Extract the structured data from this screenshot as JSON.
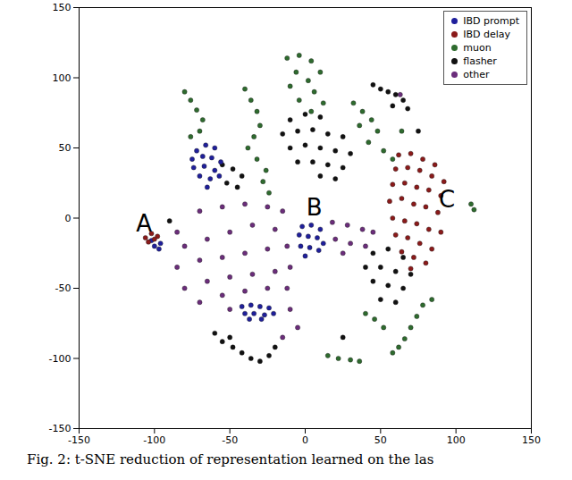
{
  "chart_data": {
    "type": "scatter",
    "caption": "Fig. 2: t-SNE reduction of representation learned on the las",
    "xlim": [
      -150,
      150
    ],
    "xticks": [
      -150,
      -100,
      -50,
      0,
      50,
      100,
      150
    ],
    "ylim": [
      -150,
      150
    ],
    "yticks": [
      -150,
      -100,
      -50,
      0,
      50,
      100,
      150
    ],
    "grid": false,
    "legend": "upper right",
    "marker": "o",
    "series": [
      {
        "name": "other",
        "color": "#6b2d7b",
        "values": [
          [
            -85,
            -10
          ],
          [
            -70,
            5
          ],
          [
            -55,
            8
          ],
          [
            -40,
            10
          ],
          [
            -25,
            8
          ],
          [
            -15,
            5
          ],
          [
            -80,
            -20
          ],
          [
            -65,
            -15
          ],
          [
            -50,
            -10
          ],
          [
            -35,
            -5
          ],
          [
            -20,
            -8
          ],
          [
            -85,
            -35
          ],
          [
            -70,
            -30
          ],
          [
            -55,
            -28
          ],
          [
            -40,
            -25
          ],
          [
            -25,
            -22
          ],
          [
            -12,
            -20
          ],
          [
            -80,
            -50
          ],
          [
            -65,
            -45
          ],
          [
            -50,
            -42
          ],
          [
            -35,
            -40
          ],
          [
            -20,
            -38
          ],
          [
            -10,
            -35
          ],
          [
            -70,
            -60
          ],
          [
            -55,
            -55
          ],
          [
            -40,
            -52
          ],
          [
            -25,
            -50
          ],
          [
            -12,
            -50
          ],
          [
            -50,
            -65
          ],
          [
            -10,
            -65
          ],
          [
            -5,
            -78
          ],
          [
            -15,
            -85
          ],
          [
            18,
            -3
          ],
          [
            28,
            -5
          ],
          [
            38,
            -8
          ],
          [
            45,
            -10
          ],
          [
            20,
            -15
          ],
          [
            30,
            -18
          ],
          [
            40,
            -20
          ],
          [
            25,
            -25
          ],
          [
            63,
            88
          ]
        ]
      },
      {
        "name": "muon",
        "color": "#2e6b2e",
        "values": [
          [
            -80,
            90
          ],
          [
            -76,
            84
          ],
          [
            -72,
            77
          ],
          [
            -68,
            70
          ],
          [
            -70,
            62
          ],
          [
            -76,
            58
          ],
          [
            -40,
            92
          ],
          [
            -36,
            84
          ],
          [
            -32,
            76
          ],
          [
            -30,
            66
          ],
          [
            -34,
            58
          ],
          [
            -38,
            50
          ],
          [
            -32,
            42
          ],
          [
            -26,
            34
          ],
          [
            -28,
            26
          ],
          [
            -24,
            18
          ],
          [
            -12,
            114
          ],
          [
            -4,
            116
          ],
          [
            4,
            112
          ],
          [
            10,
            104
          ],
          [
            -6,
            104
          ],
          [
            2,
            98
          ],
          [
            -10,
            94
          ],
          [
            6,
            90
          ],
          [
            12,
            82
          ],
          [
            -4,
            84
          ],
          [
            4,
            76
          ],
          [
            32,
            82
          ],
          [
            38,
            76
          ],
          [
            44,
            70
          ],
          [
            36,
            66
          ],
          [
            48,
            62
          ],
          [
            42,
            54
          ],
          [
            52,
            48
          ],
          [
            58,
            42
          ],
          [
            64,
            62
          ],
          [
            110,
            10
          ],
          [
            112,
            6
          ],
          [
            78,
            -62
          ],
          [
            74,
            -70
          ],
          [
            70,
            -78
          ],
          [
            66,
            -86
          ],
          [
            62,
            -92
          ],
          [
            58,
            -96
          ],
          [
            84,
            -58
          ],
          [
            40,
            -68
          ],
          [
            46,
            -72
          ],
          [
            52,
            -78
          ],
          [
            15,
            -98
          ],
          [
            22,
            -100
          ],
          [
            30,
            -101
          ],
          [
            36,
            -102
          ]
        ]
      },
      {
        "name": "flasher",
        "color": "#111111",
        "values": [
          [
            -10,
            70
          ],
          [
            0,
            74
          ],
          [
            10,
            72
          ],
          [
            -15,
            60
          ],
          [
            -5,
            62
          ],
          [
            5,
            63
          ],
          [
            15,
            60
          ],
          [
            25,
            58
          ],
          [
            -10,
            50
          ],
          [
            0,
            52
          ],
          [
            10,
            50
          ],
          [
            20,
            48
          ],
          [
            30,
            46
          ],
          [
            -5,
            40
          ],
          [
            5,
            40
          ],
          [
            15,
            38
          ],
          [
            25,
            36
          ],
          [
            10,
            30
          ],
          [
            20,
            28
          ],
          [
            45,
            95
          ],
          [
            50,
            92
          ],
          [
            55,
            90
          ],
          [
            60,
            88
          ],
          [
            65,
            84
          ],
          [
            58,
            80
          ],
          [
            68,
            78
          ],
          [
            45,
            -25
          ],
          [
            55,
            -22
          ],
          [
            65,
            -28
          ],
          [
            40,
            -35
          ],
          [
            50,
            -35
          ],
          [
            60,
            -38
          ],
          [
            70,
            -40
          ],
          [
            45,
            -45
          ],
          [
            55,
            -48
          ],
          [
            65,
            -50
          ],
          [
            50,
            -58
          ],
          [
            60,
            -60
          ],
          [
            -55,
            38
          ],
          [
            -48,
            35
          ],
          [
            -42,
            30
          ],
          [
            -52,
            25
          ],
          [
            -45,
            22
          ],
          [
            -60,
            -82
          ],
          [
            -55,
            -88
          ],
          [
            -48,
            -92
          ],
          [
            -42,
            -96
          ],
          [
            -36,
            -100
          ],
          [
            -30,
            -102
          ],
          [
            -24,
            -98
          ],
          [
            -20,
            -92
          ],
          [
            -50,
            -85
          ],
          [
            -90,
            -2
          ],
          [
            75,
            62
          ],
          [
            25,
            -85
          ]
        ]
      },
      {
        "name": "IBD prompt",
        "color": "#1f1f9c",
        "values": [
          [
            -72,
            48
          ],
          [
            -66,
            52
          ],
          [
            -60,
            50
          ],
          [
            -75,
            42
          ],
          [
            -68,
            44
          ],
          [
            -62,
            43
          ],
          [
            -56,
            40
          ],
          [
            -74,
            36
          ],
          [
            -67,
            37
          ],
          [
            -60,
            34
          ],
          [
            -70,
            30
          ],
          [
            -63,
            28
          ],
          [
            -57,
            30
          ],
          [
            -65,
            22
          ],
          [
            -2,
            -6
          ],
          [
            4,
            -5
          ],
          [
            10,
            -8
          ],
          [
            -4,
            -12
          ],
          [
            2,
            -13
          ],
          [
            8,
            -14
          ],
          [
            12,
            -18
          ],
          [
            -3,
            -20
          ],
          [
            3,
            -21
          ],
          [
            9,
            -23
          ],
          [
            0,
            -27
          ],
          [
            -42,
            -63
          ],
          [
            -36,
            -62
          ],
          [
            -30,
            -63
          ],
          [
            -24,
            -64
          ],
          [
            -40,
            -68
          ],
          [
            -34,
            -68
          ],
          [
            -27,
            -69
          ],
          [
            -21,
            -68
          ],
          [
            -37,
            -72
          ],
          [
            -29,
            -72
          ],
          [
            -100,
            -20
          ],
          [
            -96,
            -18
          ],
          [
            -102,
            -16
          ],
          [
            -97,
            -22
          ]
        ]
      },
      {
        "name": "IBD delay",
        "color": "#8b1a1a",
        "values": [
          [
            62,
            45
          ],
          [
            70,
            46
          ],
          [
            78,
            42
          ],
          [
            86,
            38
          ],
          [
            60,
            35
          ],
          [
            68,
            36
          ],
          [
            76,
            34
          ],
          [
            84,
            30
          ],
          [
            92,
            26
          ],
          [
            58,
            24
          ],
          [
            66,
            25
          ],
          [
            74,
            22
          ],
          [
            82,
            20
          ],
          [
            90,
            16
          ],
          [
            56,
            12
          ],
          [
            64,
            14
          ],
          [
            72,
            10
          ],
          [
            80,
            8
          ],
          [
            88,
            4
          ],
          [
            58,
            0
          ],
          [
            66,
            -2
          ],
          [
            74,
            -4
          ],
          [
            82,
            -8
          ],
          [
            90,
            -10
          ],
          [
            60,
            -12
          ],
          [
            68,
            -14
          ],
          [
            76,
            -18
          ],
          [
            84,
            -22
          ],
          [
            64,
            -24
          ],
          [
            72,
            -28
          ],
          [
            80,
            -32
          ],
          [
            70,
            -36
          ],
          [
            -106,
            -14
          ],
          [
            -102,
            -11
          ],
          [
            -98,
            -13
          ],
          [
            -104,
            -17
          ],
          [
            -100,
            -15
          ]
        ]
      }
    ],
    "legend_order": [
      "IBD prompt",
      "IBD delay",
      "muon",
      "flasher",
      "other"
    ],
    "annotations": [
      {
        "text": "A",
        "x": -107,
        "y": -4
      },
      {
        "text": "B",
        "x": 6,
        "y": 7
      },
      {
        "text": "C",
        "x": 94,
        "y": 13
      }
    ]
  }
}
